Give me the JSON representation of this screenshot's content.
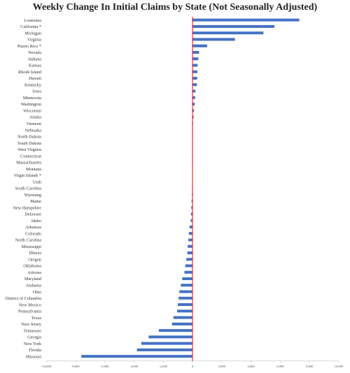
{
  "chart_data": {
    "type": "bar",
    "orientation": "horizontal",
    "title": "Weekly Change In Initial Claims by State (Not Seasonally Adjusted)",
    "xlabel": "",
    "ylabel": "",
    "xlim": [
      -10000,
      10000
    ],
    "xticks": [
      -10000,
      -8000,
      -6000,
      -4000,
      -2000,
      0,
      2000,
      4000,
      6000,
      8000,
      10000
    ],
    "xtick_labels": [
      "-10,000",
      "-8,000",
      "-6,000",
      "-4,000",
      "-2,000",
      "0",
      "2,000",
      "4,000",
      "6,000",
      "8,000",
      "10,000"
    ],
    "grid": false,
    "legend": "none",
    "bar_color": "#4472C4",
    "zero_line_color": "#FF0000",
    "categories": [
      "Louisiana",
      "California *",
      "Michigan",
      "Virginia",
      "Puerto Rico *",
      "Nevada",
      "Indiana",
      "Kansas",
      "Rhode Island",
      "Hawaii",
      "Kentucky",
      "Iowa",
      "Minnesota",
      "Washington",
      "Wisconsin",
      "Alaska",
      "Vermont",
      "Nebraska",
      "North Dakota",
      "South Dakota",
      "West Virginia",
      "Connecticut",
      "Massachusetts",
      "Montana",
      "Virgin Islands *",
      "Utah",
      "South Carolina",
      "Wyoming",
      "Maine",
      "New Hampshire",
      "Delaware",
      "Idaho",
      "Arkansas",
      "Colorado",
      "North Carolina",
      "Mississippi",
      "Illinois",
      "Oregon",
      "Oklahoma",
      "Arizona",
      "Maryland",
      "Alabama",
      "Ohio",
      "District of Columbia",
      "New Mexico",
      "Pennsylvania",
      "Texas",
      "New Jersey",
      "Tennessee",
      "Georgia",
      "New York",
      "Florida",
      "Missouri"
    ],
    "values": [
      7300,
      5600,
      4850,
      2900,
      1000,
      450,
      400,
      350,
      330,
      320,
      300,
      200,
      180,
      150,
      100,
      80,
      40,
      30,
      20,
      15,
      10,
      5,
      5,
      0,
      0,
      -20,
      -30,
      -40,
      -60,
      -80,
      -100,
      -120,
      -200,
      -250,
      -280,
      -330,
      -350,
      -420,
      -500,
      -550,
      -700,
      -800,
      -900,
      -950,
      -1000,
      -1050,
      -1300,
      -1400,
      -2300,
      -3000,
      -3500,
      -3800,
      -7600
    ]
  }
}
